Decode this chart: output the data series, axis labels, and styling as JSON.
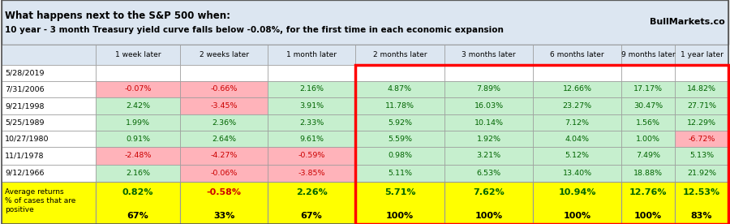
{
  "title_line1": "What happens next to the S&P 500 when:",
  "title_line2": "10 year - 3 month Treasury yield curve falls below -0.08%, for the first time in each economic expansion",
  "watermark": "BullMarkets.co",
  "col_headers": [
    "",
    "1 week later",
    "2 weeks later",
    "1 month later",
    "2 months later",
    "3 months later",
    "6 months later",
    "9 months later",
    "1 year later"
  ],
  "rows": [
    {
      "label": "5/28/2019",
      "values": [
        "",
        "",
        "",
        "",
        "",
        "",
        "",
        ""
      ]
    },
    {
      "label": "7/31/2006",
      "values": [
        "-0.07%",
        "-0.66%",
        "2.16%",
        "4.87%",
        "7.89%",
        "12.66%",
        "17.17%",
        "14.82%"
      ]
    },
    {
      "label": "9/21/1998",
      "values": [
        "2.42%",
        "-3.45%",
        "3.91%",
        "11.78%",
        "16.03%",
        "23.27%",
        "30.47%",
        "27.71%"
      ]
    },
    {
      "label": "5/25/1989",
      "values": [
        "1.99%",
        "2.36%",
        "2.33%",
        "5.92%",
        "10.14%",
        "7.12%",
        "1.56%",
        "12.29%"
      ]
    },
    {
      "label": "10/27/1980",
      "values": [
        "0.91%",
        "2.64%",
        "9.61%",
        "5.59%",
        "1.92%",
        "4.04%",
        "1.00%",
        "-6.72%"
      ]
    },
    {
      "label": "11/1/1978",
      "values": [
        "-2.48%",
        "-4.27%",
        "-0.59%",
        "0.98%",
        "3.21%",
        "5.12%",
        "7.49%",
        "5.13%"
      ]
    },
    {
      "label": "9/12/1966",
      "values": [
        "2.16%",
        "-0.06%",
        "-3.85%",
        "5.11%",
        "6.53%",
        "13.40%",
        "18.88%",
        "21.92%"
      ]
    }
  ],
  "avg_returns": [
    "0.82%",
    "-0.58%",
    "2.26%",
    "5.71%",
    "7.62%",
    "10.94%",
    "12.76%",
    "12.53%"
  ],
  "pct_positive": [
    "67%",
    "33%",
    "67%",
    "100%",
    "100%",
    "100%",
    "100%",
    "83%"
  ],
  "header_bg": "#dce6f1",
  "title_bg": "#dce6f1",
  "avg_bg": "#ffff00",
  "white_bg": "#ffffff",
  "cell_colors": [
    [
      "#ffffff",
      "#ffffff",
      "#ffffff",
      "#ffffff",
      "#ffffff",
      "#ffffff",
      "#ffffff",
      "#ffffff"
    ],
    [
      "#ffb3ba",
      "#ffb3ba",
      "#c6efce",
      "#c6efce",
      "#c6efce",
      "#c6efce",
      "#c6efce",
      "#c6efce"
    ],
    [
      "#c6efce",
      "#ffb3ba",
      "#c6efce",
      "#c6efce",
      "#c6efce",
      "#c6efce",
      "#c6efce",
      "#c6efce"
    ],
    [
      "#c6efce",
      "#c6efce",
      "#c6efce",
      "#c6efce",
      "#c6efce",
      "#c6efce",
      "#c6efce",
      "#c6efce"
    ],
    [
      "#c6efce",
      "#c6efce",
      "#c6efce",
      "#c6efce",
      "#c6efce",
      "#c6efce",
      "#c6efce",
      "#ffb3ba"
    ],
    [
      "#ffb3ba",
      "#ffb3ba",
      "#ffb3ba",
      "#c6efce",
      "#c6efce",
      "#c6efce",
      "#c6efce",
      "#c6efce"
    ],
    [
      "#c6efce",
      "#ffb3ba",
      "#ffb3ba",
      "#c6efce",
      "#c6efce",
      "#c6efce",
      "#c6efce",
      "#c6efce"
    ]
  ],
  "value_colors": [
    [
      "#000000",
      "#000000",
      "#000000",
      "#000000",
      "#000000",
      "#000000",
      "#000000",
      "#000000"
    ],
    [
      "#cc0000",
      "#cc0000",
      "#006400",
      "#006400",
      "#006400",
      "#006400",
      "#006400",
      "#006400"
    ],
    [
      "#006400",
      "#cc0000",
      "#006400",
      "#006400",
      "#006400",
      "#006400",
      "#006400",
      "#006400"
    ],
    [
      "#006400",
      "#006400",
      "#006400",
      "#006400",
      "#006400",
      "#006400",
      "#006400",
      "#006400"
    ],
    [
      "#006400",
      "#006400",
      "#006400",
      "#006400",
      "#006400",
      "#006400",
      "#006400",
      "#cc0000"
    ],
    [
      "#cc0000",
      "#cc0000",
      "#cc0000",
      "#006400",
      "#006400",
      "#006400",
      "#006400",
      "#006400"
    ],
    [
      "#006400",
      "#cc0000",
      "#cc0000",
      "#006400",
      "#006400",
      "#006400",
      "#006400",
      "#006400"
    ]
  ],
  "avg_value_colors": [
    "#006400",
    "#cc0000",
    "#006400",
    "#006400",
    "#006400",
    "#006400",
    "#006400",
    "#006400"
  ]
}
